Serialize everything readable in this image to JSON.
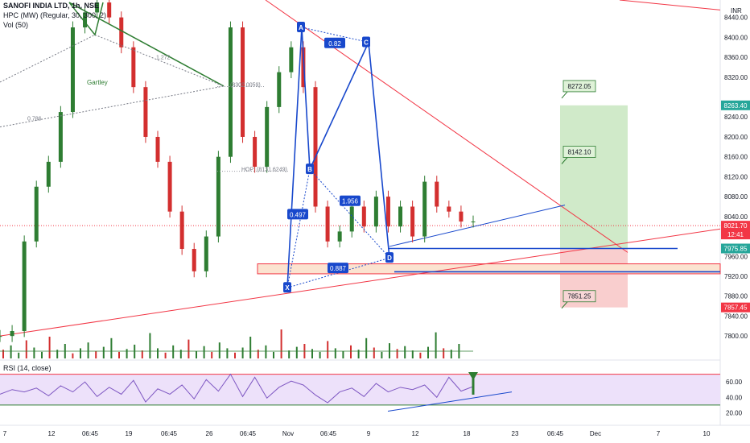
{
  "header": {
    "symbol": "SANOFI INDIA LTD, 1h, NSE",
    "indicator": "HPC (MW) (Regular, 30, 300, 2)",
    "volume": "Vol (50)",
    "rsi": "RSI (14, close)"
  },
  "currency": "INR",
  "price_tags": [
    {
      "label": "8263.40",
      "value": 8263.4,
      "color": "#26a69a",
      "text_color": "#ffffff"
    },
    {
      "label": "8021.70",
      "value": 8021.7,
      "color": "#f23645",
      "text_color": "#ffffff"
    },
    {
      "label": "12:41",
      "value": 8004,
      "color": "#f23645",
      "text_color": "#ffffff"
    },
    {
      "label": "7975.85",
      "value": 7975.85,
      "color": "#26a69a",
      "text_color": "#ffffff"
    },
    {
      "label": "7857.45",
      "value": 7857.45,
      "color": "#f23645",
      "text_color": "#ffffff"
    }
  ],
  "pattern_labels": [
    {
      "text": "A",
      "price": 8420
    },
    {
      "text": "B",
      "price": 8135
    },
    {
      "text": "C",
      "price": 8390
    },
    {
      "text": "D",
      "price": 7957
    },
    {
      "text": "X",
      "price": 7897
    }
  ],
  "ratios": [
    {
      "text": "0.82",
      "price": 8388
    },
    {
      "text": "0.497",
      "price": 8044
    },
    {
      "text": "1.956",
      "price": 8071
    },
    {
      "text": "0.887",
      "price": 7936
    }
  ],
  "gartley_text": "Gartley",
  "annotations": [
    {
      "text": "1.272",
      "price": 8356
    },
    {
      "text": "0.786",
      "price": 8233
    },
    {
      "text": "(8302.0059)",
      "price": 8301
    },
    {
      "text": "HOP: (8131.6249)",
      "price": 8131
    }
  ],
  "targets": [
    {
      "text": "8272.05",
      "price": 8302
    },
    {
      "text": "8142.10",
      "price": 8170
    },
    {
      "text": "7851.25",
      "price": 7880
    }
  ],
  "chart_data": {
    "type": "line",
    "title": "SANOFI INDIA LTD, 1h, NSE",
    "y_axis": {
      "ylim": [
        7755,
        8475
      ],
      "ticks": [
        8440,
        8400,
        8360,
        8320,
        8240,
        8200,
        8160,
        8120,
        8080,
        8040,
        7960,
        7920,
        7880,
        7840,
        7800
      ]
    },
    "x_axis": {
      "ticks": [
        "7",
        "12",
        "06:45",
        "19",
        "06:45",
        "26",
        "06:45",
        "Nov",
        "06:45",
        "9",
        "12",
        "18",
        "23",
        "06:45",
        "Dec",
        "7",
        "10"
      ]
    },
    "series": [
      {
        "name": "",
        "values": [
          7800,
          7810,
          7990,
          8100,
          8150,
          8250,
          8420,
          8450,
          8470,
          8440,
          8380,
          8300,
          8200,
          8150,
          8050,
          7975,
          7930,
          8000,
          8160,
          8420,
          8200,
          8140,
          8260,
          8330,
          8380,
          8300,
          8060,
          7990,
          8010,
          8060,
          8020,
          8080,
          8020,
          8060,
          8000,
          8110,
          8060,
          8050,
          8030,
          8030
        ]
      }
    ],
    "rsi": {
      "ticks": [
        60,
        40,
        20
      ],
      "overbought": 70,
      "oversold": 30,
      "values": [
        44,
        50,
        47,
        52,
        42,
        55,
        47,
        60,
        41,
        53,
        44,
        62,
        34,
        51,
        44,
        56,
        38,
        63,
        48,
        70,
        41,
        66,
        39,
        53,
        61,
        56,
        43,
        33,
        47,
        52,
        41,
        58,
        47,
        53,
        50,
        56,
        40,
        66,
        48,
        54
      ]
    },
    "grid": false,
    "legend": "none"
  },
  "volume_bars": [
    12,
    18,
    8,
    25,
    15,
    9,
    30,
    12,
    20,
    7,
    14,
    22,
    10,
    16,
    28,
    9,
    13,
    19,
    11,
    35,
    14,
    8,
    18,
    12,
    26,
    10,
    17,
    9,
    22,
    14,
    8,
    15,
    30,
    12,
    18,
    9,
    40,
    11,
    16,
    20,
    13,
    9,
    24,
    14,
    10,
    18,
    12,
    28,
    15,
    9,
    21,
    13,
    17,
    11,
    8,
    16,
    36,
    14,
    12,
    20
  ]
}
